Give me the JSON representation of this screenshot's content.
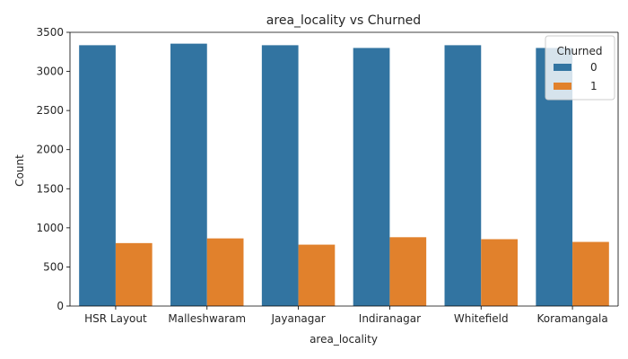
{
  "chart_data": {
    "type": "bar",
    "title": "area_locality vs Churned",
    "xlabel": "area_locality",
    "ylabel": "Count",
    "categories": [
      "HSR Layout",
      "Malleshwaram",
      "Jayanagar",
      "Indiranagar",
      "Whitefield",
      "Koramangala"
    ],
    "series": [
      {
        "name": "0",
        "color": "#3274a1",
        "values": [
          3335,
          3355,
          3335,
          3300,
          3335,
          3300
        ]
      },
      {
        "name": "1",
        "color": "#e1812c",
        "values": [
          805,
          865,
          785,
          880,
          855,
          820
        ]
      }
    ],
    "ylim": [
      0,
      3500
    ],
    "yticks": [
      0,
      500,
      1000,
      1500,
      2000,
      2500,
      3000,
      3500
    ],
    "legend": {
      "title": "Churned",
      "placement": "top-right"
    },
    "grid": false
  }
}
